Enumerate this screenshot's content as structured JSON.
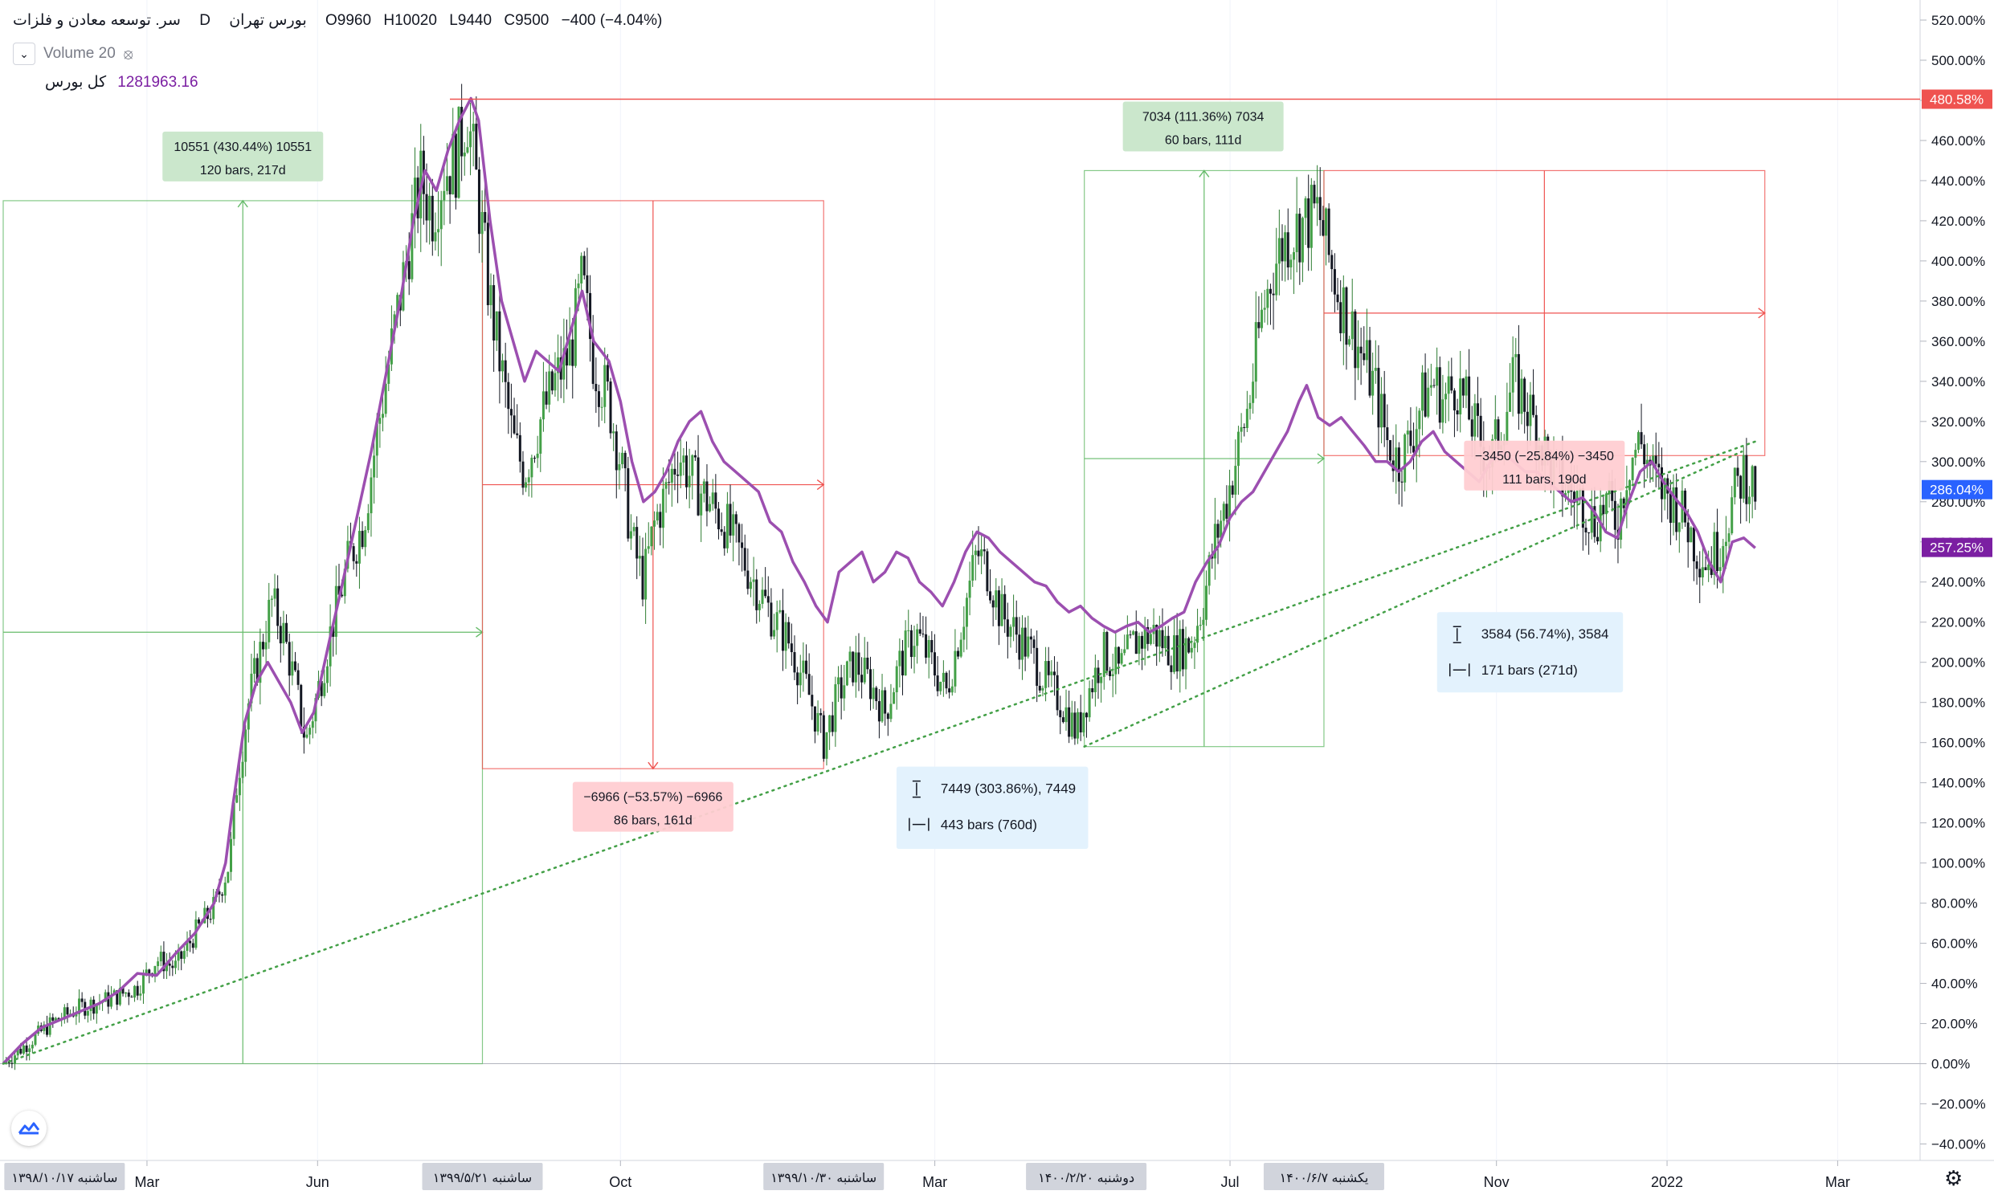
{
  "header": {
    "symbol": "سر. توسعه معادن و فلزات",
    "interval": "D",
    "exchange": "بورس تهران",
    "open_label": "O",
    "open": "9960",
    "high_label": "H",
    "high": "10020",
    "low_label": "L",
    "low": "9440",
    "close_label": "C",
    "close": "9500",
    "change": "−400 (−4.04%)"
  },
  "volume_row": {
    "label": "Volume 20",
    "collapse_icon": "chevron-down-icon",
    "visibility_icon": "eye-off-icon"
  },
  "compare_row": {
    "value": "1281963.16",
    "name": "کل بورس",
    "color": "#7b1fa2"
  },
  "colors": {
    "up": "#2e7d32",
    "down": "#131722",
    "compare": "#9c4fb0",
    "trend": "#43a047",
    "price_line": "#ef5350",
    "compare_badge": "#7b1fa2",
    "current_badge": "#2962ff"
  },
  "chart_data": {
    "type": "candlestick",
    "y_unit": "percent",
    "ylim": [
      -45,
      530
    ],
    "y_ticks": [
      "520.00%",
      "500.00%",
      "480.00%",
      "460.00%",
      "440.00%",
      "420.00%",
      "400.00%",
      "380.00%",
      "360.00%",
      "340.00%",
      "320.00%",
      "300.00%",
      "280.00%",
      "260.00%",
      "240.00%",
      "220.00%",
      "200.00%",
      "180.00%",
      "160.00%",
      "140.00%",
      "120.00%",
      "100.00%",
      "80.00%",
      "60.00%",
      "40.00%",
      "20.00%",
      "0.00%",
      "−20.00%",
      "−40.00%"
    ],
    "y_tick_values": [
      520,
      500,
      480,
      460,
      440,
      420,
      400,
      380,
      360,
      340,
      320,
      300,
      280,
      260,
      240,
      220,
      200,
      180,
      160,
      140,
      120,
      100,
      80,
      60,
      40,
      20,
      0,
      -20,
      -40
    ],
    "x_ticks": [
      {
        "label": "Mar",
        "t": 0.075
      },
      {
        "label": "Jun",
        "t": 0.164
      },
      {
        "label": "Oct",
        "t": 0.322
      },
      {
        "label": "Mar",
        "t": 0.486
      },
      {
        "label": "Jul",
        "t": 0.64
      },
      {
        "label": "Nov",
        "t": 0.779
      },
      {
        "label": "2022",
        "t": 0.868
      },
      {
        "label": "Mar",
        "t": 0.957
      }
    ],
    "x_badges": [
      {
        "label": "ساشنبه ۱۳۹۸/۱۰/۱۷",
        "t": 0.032
      },
      {
        "label": "ساشنبه ۱۳۹۹/۵/۲۱",
        "t": 0.25
      },
      {
        "label": "ساشنبه ۱۳۹۹/۱۰/۳۰",
        "t": 0.428
      },
      {
        "label": "دوشنبه ۱۴۰۰/۲/۲۰",
        "t": 0.565
      },
      {
        "label": "یکشنبه ۱۴۰۰/۶/۷",
        "t": 0.689
      }
    ],
    "price_path": [
      [
        0.0,
        0
      ],
      [
        0.01,
        8
      ],
      [
        0.025,
        20
      ],
      [
        0.04,
        28
      ],
      [
        0.055,
        32
      ],
      [
        0.07,
        38
      ],
      [
        0.08,
        52
      ],
      [
        0.09,
        48
      ],
      [
        0.1,
        65
      ],
      [
        0.11,
        78
      ],
      [
        0.118,
        100
      ],
      [
        0.122,
        140
      ],
      [
        0.128,
        180
      ],
      [
        0.134,
        205
      ],
      [
        0.14,
        230
      ],
      [
        0.146,
        215
      ],
      [
        0.152,
        190
      ],
      [
        0.158,
        160
      ],
      [
        0.164,
        185
      ],
      [
        0.172,
        220
      ],
      [
        0.18,
        250
      ],
      [
        0.188,
        270
      ],
      [
        0.196,
        320
      ],
      [
        0.204,
        365
      ],
      [
        0.212,
        410
      ],
      [
        0.218,
        440
      ],
      [
        0.224,
        425
      ],
      [
        0.23,
        445
      ],
      [
        0.236,
        450
      ],
      [
        0.242,
        475
      ],
      [
        0.248,
        430
      ],
      [
        0.254,
        380
      ],
      [
        0.26,
        345
      ],
      [
        0.266,
        310
      ],
      [
        0.272,
        295
      ],
      [
        0.28,
        320
      ],
      [
        0.288,
        340
      ],
      [
        0.296,
        355
      ],
      [
        0.302,
        390
      ],
      [
        0.308,
        350
      ],
      [
        0.316,
        330
      ],
      [
        0.322,
        300
      ],
      [
        0.328,
        260
      ],
      [
        0.334,
        240
      ],
      [
        0.34,
        270
      ],
      [
        0.346,
        285
      ],
      [
        0.352,
        305
      ],
      [
        0.36,
        290
      ],
      [
        0.368,
        280
      ],
      [
        0.376,
        270
      ],
      [
        0.384,
        255
      ],
      [
        0.392,
        240
      ],
      [
        0.4,
        225
      ],
      [
        0.41,
        210
      ],
      [
        0.42,
        185
      ],
      [
        0.428,
        160
      ],
      [
        0.436,
        185
      ],
      [
        0.444,
        200
      ],
      [
        0.452,
        190
      ],
      [
        0.46,
        175
      ],
      [
        0.468,
        200
      ],
      [
        0.476,
        215
      ],
      [
        0.484,
        200
      ],
      [
        0.492,
        185
      ],
      [
        0.5,
        220
      ],
      [
        0.508,
        255
      ],
      [
        0.514,
        245
      ],
      [
        0.52,
        225
      ],
      [
        0.528,
        215
      ],
      [
        0.536,
        205
      ],
      [
        0.544,
        190
      ],
      [
        0.552,
        180
      ],
      [
        0.56,
        165
      ],
      [
        0.566,
        185
      ],
      [
        0.574,
        205
      ],
      [
        0.582,
        195
      ],
      [
        0.59,
        210
      ],
      [
        0.6,
        215
      ],
      [
        0.61,
        205
      ],
      [
        0.62,
        210
      ],
      [
        0.626,
        230
      ],
      [
        0.632,
        260
      ],
      [
        0.638,
        280
      ],
      [
        0.644,
        305
      ],
      [
        0.65,
        330
      ],
      [
        0.656,
        370
      ],
      [
        0.662,
        395
      ],
      [
        0.668,
        410
      ],
      [
        0.674,
        415
      ],
      [
        0.68,
        420
      ],
      [
        0.686,
        425
      ],
      [
        0.692,
        400
      ],
      [
        0.698,
        380
      ],
      [
        0.704,
        365
      ],
      [
        0.71,
        350
      ],
      [
        0.716,
        335
      ],
      [
        0.722,
        310
      ],
      [
        0.728,
        300
      ],
      [
        0.734,
        310
      ],
      [
        0.74,
        330
      ],
      [
        0.746,
        340
      ],
      [
        0.752,
        330
      ],
      [
        0.758,
        340
      ],
      [
        0.764,
        325
      ],
      [
        0.77,
        310
      ],
      [
        0.776,
        300
      ],
      [
        0.782,
        320
      ],
      [
        0.788,
        340
      ],
      [
        0.794,
        330
      ],
      [
        0.8,
        315
      ],
      [
        0.806,
        300
      ],
      [
        0.812,
        290
      ],
      [
        0.818,
        285
      ],
      [
        0.824,
        280
      ],
      [
        0.83,
        270
      ],
      [
        0.836,
        280
      ],
      [
        0.842,
        270
      ],
      [
        0.848,
        300
      ],
      [
        0.854,
        310
      ],
      [
        0.86,
        295
      ],
      [
        0.866,
        285
      ],
      [
        0.872,
        280
      ],
      [
        0.878,
        270
      ],
      [
        0.884,
        255
      ],
      [
        0.89,
        250
      ],
      [
        0.896,
        260
      ],
      [
        0.902,
        280
      ],
      [
        0.908,
        295
      ],
      [
        0.914,
        286
      ]
    ],
    "compare_path": [
      [
        0.0,
        0
      ],
      [
        0.01,
        10
      ],
      [
        0.02,
        18
      ],
      [
        0.03,
        22
      ],
      [
        0.04,
        26
      ],
      [
        0.05,
        30
      ],
      [
        0.06,
        36
      ],
      [
        0.07,
        45
      ],
      [
        0.08,
        44
      ],
      [
        0.09,
        55
      ],
      [
        0.1,
        65
      ],
      [
        0.11,
        80
      ],
      [
        0.116,
        100
      ],
      [
        0.12,
        130
      ],
      [
        0.126,
        170
      ],
      [
        0.132,
        190
      ],
      [
        0.138,
        200
      ],
      [
        0.144,
        190
      ],
      [
        0.15,
        180
      ],
      [
        0.156,
        165
      ],
      [
        0.162,
        175
      ],
      [
        0.17,
        210
      ],
      [
        0.176,
        235
      ],
      [
        0.184,
        270
      ],
      [
        0.192,
        305
      ],
      [
        0.2,
        345
      ],
      [
        0.208,
        385
      ],
      [
        0.214,
        420
      ],
      [
        0.22,
        445
      ],
      [
        0.226,
        435
      ],
      [
        0.232,
        455
      ],
      [
        0.238,
        470
      ],
      [
        0.244,
        481
      ],
      [
        0.248,
        470
      ],
      [
        0.254,
        420
      ],
      [
        0.26,
        380
      ],
      [
        0.266,
        360
      ],
      [
        0.272,
        340
      ],
      [
        0.278,
        355
      ],
      [
        0.284,
        350
      ],
      [
        0.29,
        345
      ],
      [
        0.296,
        365
      ],
      [
        0.302,
        385
      ],
      [
        0.308,
        360
      ],
      [
        0.316,
        350
      ],
      [
        0.322,
        330
      ],
      [
        0.328,
        300
      ],
      [
        0.334,
        280
      ],
      [
        0.34,
        285
      ],
      [
        0.346,
        295
      ],
      [
        0.352,
        310
      ],
      [
        0.358,
        320
      ],
      [
        0.364,
        325
      ],
      [
        0.37,
        310
      ],
      [
        0.376,
        300
      ],
      [
        0.382,
        295
      ],
      [
        0.388,
        290
      ],
      [
        0.394,
        285
      ],
      [
        0.4,
        270
      ],
      [
        0.406,
        265
      ],
      [
        0.412,
        250
      ],
      [
        0.418,
        240
      ],
      [
        0.424,
        228
      ],
      [
        0.43,
        220
      ],
      [
        0.436,
        245
      ],
      [
        0.442,
        250
      ],
      [
        0.448,
        255
      ],
      [
        0.454,
        240
      ],
      [
        0.46,
        245
      ],
      [
        0.466,
        255
      ],
      [
        0.472,
        252
      ],
      [
        0.478,
        240
      ],
      [
        0.484,
        235
      ],
      [
        0.49,
        228
      ],
      [
        0.496,
        240
      ],
      [
        0.502,
        255
      ],
      [
        0.508,
        265
      ],
      [
        0.514,
        262
      ],
      [
        0.52,
        255
      ],
      [
        0.526,
        250
      ],
      [
        0.532,
        245
      ],
      [
        0.538,
        240
      ],
      [
        0.544,
        238
      ],
      [
        0.55,
        230
      ],
      [
        0.556,
        225
      ],
      [
        0.562,
        228
      ],
      [
        0.568,
        222
      ],
      [
        0.574,
        218
      ],
      [
        0.58,
        215
      ],
      [
        0.586,
        218
      ],
      [
        0.592,
        220
      ],
      [
        0.598,
        215
      ],
      [
        0.604,
        218
      ],
      [
        0.61,
        222
      ],
      [
        0.616,
        225
      ],
      [
        0.622,
        240
      ],
      [
        0.628,
        250
      ],
      [
        0.634,
        258
      ],
      [
        0.64,
        272
      ],
      [
        0.646,
        280
      ],
      [
        0.652,
        285
      ],
      [
        0.658,
        295
      ],
      [
        0.664,
        305
      ],
      [
        0.67,
        315
      ],
      [
        0.676,
        330
      ],
      [
        0.68,
        338
      ],
      [
        0.686,
        322
      ],
      [
        0.692,
        318
      ],
      [
        0.698,
        322
      ],
      [
        0.704,
        315
      ],
      [
        0.71,
        308
      ],
      [
        0.716,
        300
      ],
      [
        0.722,
        300
      ],
      [
        0.728,
        295
      ],
      [
        0.734,
        300
      ],
      [
        0.74,
        310
      ],
      [
        0.746,
        315
      ],
      [
        0.752,
        305
      ],
      [
        0.758,
        300
      ],
      [
        0.764,
        295
      ],
      [
        0.77,
        290
      ],
      [
        0.776,
        300
      ],
      [
        0.782,
        305
      ],
      [
        0.788,
        300
      ],
      [
        0.794,
        295
      ],
      [
        0.8,
        295
      ],
      [
        0.806,
        290
      ],
      [
        0.812,
        285
      ],
      [
        0.818,
        280
      ],
      [
        0.824,
        282
      ],
      [
        0.83,
        275
      ],
      [
        0.836,
        265
      ],
      [
        0.842,
        262
      ],
      [
        0.848,
        280
      ],
      [
        0.854,
        295
      ],
      [
        0.86,
        300
      ],
      [
        0.866,
        290
      ],
      [
        0.872,
        282
      ],
      [
        0.878,
        275
      ],
      [
        0.884,
        265
      ],
      [
        0.89,
        250
      ],
      [
        0.896,
        240
      ],
      [
        0.902,
        260
      ],
      [
        0.908,
        262
      ],
      [
        0.914,
        257
      ]
    ],
    "compare_name": "کل بورس",
    "compare_color": "#9c4fb0",
    "price_line_value": 480.58,
    "price_line_label": "480.58%",
    "current_value": 286.04,
    "current_label": "286.04%",
    "compare_last_value": 257.25,
    "compare_last_label": "257.25%",
    "trendlines": [
      {
        "t1": 0.0,
        "v1": 0,
        "t2": 0.914,
        "v2": 310
      },
      {
        "t1": 0.564,
        "v1": 158,
        "t2": 0.907,
        "v2": 305
      }
    ],
    "measures": [
      {
        "kind": "up",
        "t1": 0.0,
        "v1": 0,
        "t2": 0.25,
        "v2": 430,
        "label1": "10551 (430.44%) 10551",
        "label2": "120 bars, 217d",
        "label_t": 0.125,
        "label_v": 452
      },
      {
        "kind": "down",
        "t1": 0.25,
        "v1": 430,
        "t2": 0.428,
        "v2": 147,
        "label1": "−6966 (−53.57%) −6966",
        "label2": "86 bars, 161d",
        "label_t": 0.339,
        "label_v": 128
      },
      {
        "kind": "up",
        "t1": 0.564,
        "v1": 158,
        "t2": 0.689,
        "v2": 445,
        "label1": "7034 (111.36%) 7034",
        "label2": "60 bars, 111d",
        "label_t": 0.626,
        "label_v": 467
      },
      {
        "kind": "down",
        "t1": 0.689,
        "v1": 445,
        "t2": 0.919,
        "v2": 303,
        "label1": "−3450 (−25.84%) −3450",
        "label2": "111 bars, 190d",
        "label_t": 0.804,
        "label_v": 298
      }
    ],
    "info_boxes": [
      {
        "line1": "7449 (303.86%), 7449",
        "line2": "443 bars (760d)",
        "t1": 0.466,
        "t2": 0.566,
        "v_top": 148,
        "v_bottom": 107
      },
      {
        "line1": "3584 (56.74%), 3584",
        "line2": "171 bars (271d)",
        "t1": 0.748,
        "t2": 0.845,
        "v_top": 225,
        "v_bottom": 185
      }
    ]
  }
}
